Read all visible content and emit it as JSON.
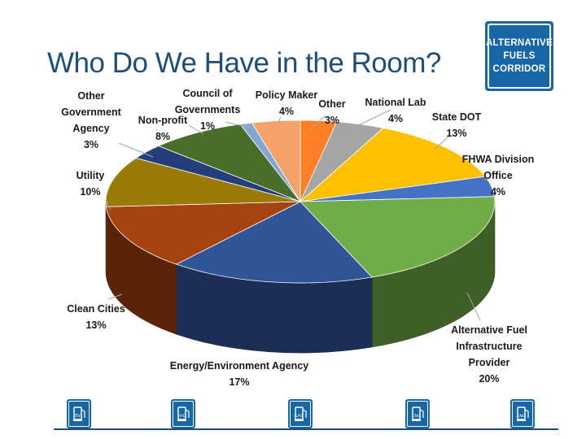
{
  "slide": {
    "title": "Who Do We Have in the Room?"
  },
  "sign": {
    "lines": [
      "ALTERNATIVE",
      "FUELS",
      "CORRIDOR"
    ]
  },
  "chart_data": {
    "type": "pie",
    "title": "Who Do We Have in the Room?",
    "unit": "%",
    "slices": [
      {
        "label": "Other",
        "value": 3,
        "color": "#ff7f27"
      },
      {
        "label": "National Lab",
        "value": 4,
        "color": "#a5a5a5"
      },
      {
        "label": "State DOT",
        "value": 13,
        "color": "#ffc000"
      },
      {
        "label": "FHWA Division Office",
        "value": 4,
        "color": "#4472c4"
      },
      {
        "label": "Alternative Fuel Infrastructure Provider",
        "value": 20,
        "color": "#70ad47"
      },
      {
        "label": "Energy/Environment Agency",
        "value": 17,
        "color": "#2f5597"
      },
      {
        "label": "Clean Cities",
        "value": 13,
        "color": "#a5420f"
      },
      {
        "label": "Utility",
        "value": 10,
        "color": "#9b7b07"
      },
      {
        "label": "Other Government Agency",
        "value": 3,
        "color": "#233e7a"
      },
      {
        "label": "Non-profit",
        "value": 8,
        "color": "#4a6e2a"
      },
      {
        "label": "Council of Governments",
        "value": 1,
        "color": "#7fa8d8"
      },
      {
        "label": "Policy Maker",
        "value": 4,
        "color": "#f4a26a"
      }
    ]
  },
  "labels": [
    {
      "lines": [
        "Other"
      ],
      "pct": "3%"
    },
    {
      "lines": [
        "National Lab"
      ],
      "pct": "4%"
    },
    {
      "lines": [
        "State DOT"
      ],
      "pct": "13%"
    },
    {
      "lines": [
        "FHWA Division",
        "Office"
      ],
      "pct": "4%"
    },
    {
      "lines": [
        "Alternative Fuel",
        "Infrastructure",
        "Provider"
      ],
      "pct": "20%"
    },
    {
      "lines": [
        "Energy/Environment Agency"
      ],
      "pct": "17%"
    },
    {
      "lines": [
        "Clean Cities"
      ],
      "pct": "13%"
    },
    {
      "lines": [
        "Utility"
      ],
      "pct": "10%"
    },
    {
      "lines": [
        "Other",
        "Government",
        "Agency"
      ],
      "pct": "3%"
    },
    {
      "lines": [
        "Non-profit"
      ],
      "pct": "8%"
    },
    {
      "lines": [
        "Council of",
        "Governments"
      ],
      "pct": "1%"
    },
    {
      "lines": [
        "Policy Maker"
      ],
      "pct": "4%"
    }
  ],
  "fuel_icons": [
    {
      "name": "ev",
      "text": "EV"
    },
    {
      "name": "hyd",
      "text": "HYD"
    },
    {
      "name": "lpg",
      "text": "LPG"
    },
    {
      "name": "cng",
      "text": "CNG"
    },
    {
      "name": "lng",
      "text": "LNG"
    }
  ]
}
